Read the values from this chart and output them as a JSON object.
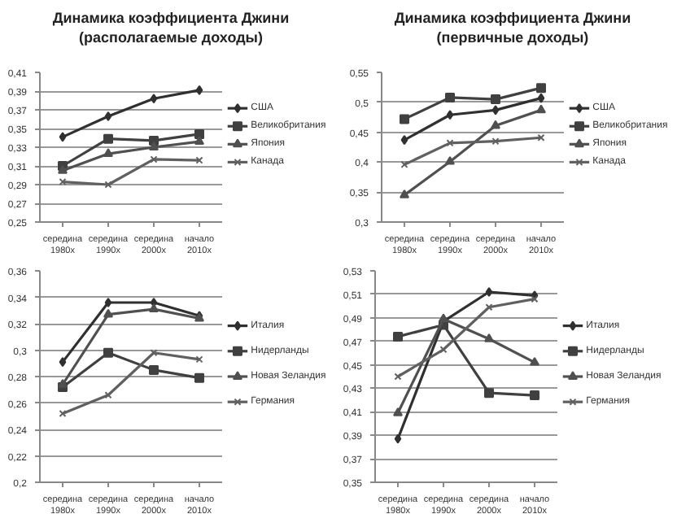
{
  "chart_data": [
    {
      "type": "line",
      "title": "Динамика коэффициента Джини\n(располагаемые доходы)",
      "categories": [
        "середина\n1980х",
        "середина\n1990х",
        "середина\n2000х",
        "начало\n2010х"
      ],
      "ylim": [
        0.25,
        0.41
      ],
      "yticks": [
        {
          "value": 0.25,
          "label": "0,25"
        },
        {
          "value": 0.27,
          "label": "0,27"
        },
        {
          "value": 0.29,
          "label": "0,29"
        },
        {
          "value": 0.31,
          "label": "0,31"
        },
        {
          "value": 0.33,
          "label": "0,33"
        },
        {
          "value": 0.35,
          "label": "0,35"
        },
        {
          "value": 0.37,
          "label": "0,37"
        },
        {
          "value": 0.39,
          "label": "0,39"
        },
        {
          "value": 0.41,
          "label": "0,41"
        }
      ],
      "grid": "y",
      "legend": "right",
      "line_style": "solid",
      "series": [
        {
          "name": "США",
          "color": "#303030",
          "marker": "diamond",
          "values": [
            0.341,
            0.363,
            0.382,
            0.391
          ]
        },
        {
          "name": "Великобритания",
          "color": "#404040",
          "marker": "square",
          "values": [
            0.31,
            0.339,
            0.337,
            0.344
          ]
        },
        {
          "name": "Япония",
          "color": "#505050",
          "marker": "triangle",
          "values": [
            0.305,
            0.323,
            0.33,
            0.336
          ]
        },
        {
          "name": "Канада",
          "color": "#606060",
          "marker": "cross",
          "values": [
            0.293,
            0.29,
            0.317,
            0.316
          ]
        }
      ]
    },
    {
      "type": "line",
      "title": "Динамика коэффициента Джини\n(первичные доходы)",
      "categories": [
        "середина\n1980х",
        "середина\n1990х",
        "середина\n2000х",
        "начало\n2010х"
      ],
      "ylim": [
        0.3,
        0.55
      ],
      "yticks": [
        {
          "value": 0.3,
          "label": "0,3"
        },
        {
          "value": 0.35,
          "label": "0,35"
        },
        {
          "value": 0.4,
          "label": "0,4"
        },
        {
          "value": 0.45,
          "label": "0,45"
        },
        {
          "value": 0.5,
          "label": "0,5"
        },
        {
          "value": 0.55,
          "label": "0,55"
        }
      ],
      "grid": "y",
      "legend": "right",
      "line_style": "solid",
      "series": [
        {
          "name": "США",
          "color": "#303030",
          "marker": "diamond",
          "values": [
            0.437,
            0.479,
            0.487,
            0.507
          ]
        },
        {
          "name": "Великобритания",
          "color": "#404040",
          "marker": "square",
          "values": [
            0.472,
            0.508,
            0.505,
            0.524
          ]
        },
        {
          "name": "Япония",
          "color": "#505050",
          "marker": "triangle",
          "values": [
            0.345,
            0.401,
            0.461,
            0.487
          ]
        },
        {
          "name": "Канада",
          "color": "#606060",
          "marker": "cross",
          "values": [
            0.396,
            0.432,
            0.435,
            0.441
          ]
        }
      ]
    },
    {
      "type": "line",
      "categories": [
        "середина\n1980х",
        "середина\n1990х",
        "середина\n2000х",
        "начало\n2010х"
      ],
      "ylim": [
        0.2,
        0.36
      ],
      "yticks": [
        {
          "value": 0.2,
          "label": "0,2"
        },
        {
          "value": 0.22,
          "label": "0,22"
        },
        {
          "value": 0.24,
          "label": "0,24"
        },
        {
          "value": 0.26,
          "label": "0,26"
        },
        {
          "value": 0.28,
          "label": "0,28"
        },
        {
          "value": 0.3,
          "label": "0,3"
        },
        {
          "value": 0.32,
          "label": "0,32"
        },
        {
          "value": 0.34,
          "label": "0,34"
        },
        {
          "value": 0.36,
          "label": "0,36"
        }
      ],
      "grid": "y",
      "legend": "right",
      "line_style": "solid",
      "series": [
        {
          "name": "Италия",
          "color": "#303030",
          "marker": "diamond",
          "values": [
            0.291,
            0.336,
            0.336,
            0.326
          ]
        },
        {
          "name": "Нидерланды",
          "color": "#404040",
          "marker": "square",
          "values": [
            0.272,
            0.298,
            0.285,
            0.279
          ]
        },
        {
          "name": "Новая Зеландия",
          "color": "#505050",
          "marker": "triangle",
          "values": [
            0.274,
            0.327,
            0.331,
            0.324
          ]
        },
        {
          "name": "Германия",
          "color": "#606060",
          "marker": "cross",
          "values": [
            0.252,
            0.266,
            0.298,
            0.293
          ]
        }
      ]
    },
    {
      "type": "line",
      "categories": [
        "середина\n1980х",
        "середина\n1990х",
        "середина\n2000х",
        "начало\n2010х"
      ],
      "ylim": [
        0.35,
        0.53
      ],
      "yticks": [
        {
          "value": 0.35,
          "label": "0,35"
        },
        {
          "value": 0.37,
          "label": "0,37"
        },
        {
          "value": 0.39,
          "label": "0,39"
        },
        {
          "value": 0.41,
          "label": "0,41"
        },
        {
          "value": 0.43,
          "label": "0,43"
        },
        {
          "value": 0.45,
          "label": "0,45"
        },
        {
          "value": 0.47,
          "label": "0,47"
        },
        {
          "value": 0.49,
          "label": "0,49"
        },
        {
          "value": 0.51,
          "label": "0,51"
        },
        {
          "value": 0.53,
          "label": "0,53"
        }
      ],
      "grid": "y",
      "legend": "right",
      "line_style": "solid",
      "series": [
        {
          "name": "Италия",
          "color": "#303030",
          "marker": "diamond",
          "values": [
            0.387,
            0.487,
            0.512,
            0.509
          ]
        },
        {
          "name": "Нидерланды",
          "color": "#404040",
          "marker": "square",
          "values": [
            0.474,
            0.484,
            0.426,
            0.424
          ]
        },
        {
          "name": "Новая Зеландия",
          "color": "#505050",
          "marker": "triangle",
          "values": [
            0.409,
            0.489,
            0.472,
            0.452
          ]
        },
        {
          "name": "Германия",
          "color": "#606060",
          "marker": "cross",
          "values": [
            0.44,
            0.463,
            0.499,
            0.506
          ]
        }
      ]
    }
  ]
}
